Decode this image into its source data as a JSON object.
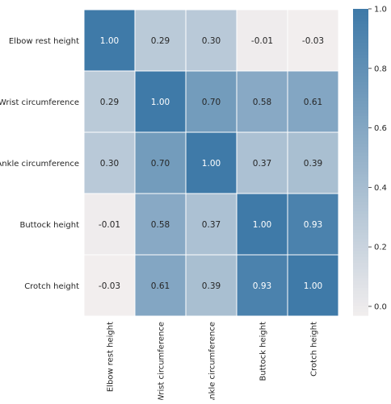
{
  "chart_data": {
    "type": "heatmap",
    "title": "",
    "xlabel": "",
    "ylabel": "",
    "rows": [
      "Elbow rest height",
      "Wrist circumference",
      "Ankle circumference",
      "Buttock height",
      "Crotch height"
    ],
    "columns": [
      "Elbow rest height",
      "Wrist circumference",
      "Ankle circumference",
      "Buttock height",
      "Crotch height"
    ],
    "values": [
      [
        1.0,
        0.29,
        0.3,
        -0.01,
        -0.03
      ],
      [
        0.29,
        1.0,
        0.7,
        0.58,
        0.61
      ],
      [
        0.3,
        0.7,
        1.0,
        0.37,
        0.39
      ],
      [
        -0.01,
        0.58,
        0.37,
        1.0,
        0.93
      ],
      [
        -0.03,
        0.61,
        0.39,
        0.93,
        1.0
      ]
    ],
    "cell_labels": [
      [
        "1.00",
        "0.29",
        "0.30",
        "-0.01",
        "-0.03"
      ],
      [
        "0.29",
        "1.00",
        "0.70",
        "0.58",
        "0.61"
      ],
      [
        "0.30",
        "0.70",
        "1.00",
        "0.37",
        "0.39"
      ],
      [
        "-0.01",
        "0.58",
        "0.37",
        "1.00",
        "0.93"
      ],
      [
        "-0.03",
        "0.61",
        "0.39",
        "0.93",
        "1.00"
      ]
    ],
    "colorbar": {
      "range": [
        -0.03,
        1.0
      ],
      "ticks": [
        0.0,
        0.2,
        0.4,
        0.6,
        0.8,
        1.0
      ],
      "tick_labels": [
        "0.0",
        "0.2",
        "0.4",
        "0.6",
        "0.8",
        "1.0"
      ],
      "low_color": "#f2eeee",
      "high_color": "#3f7aa8"
    },
    "grid": true,
    "cell_border_color": "#ffffff"
  }
}
